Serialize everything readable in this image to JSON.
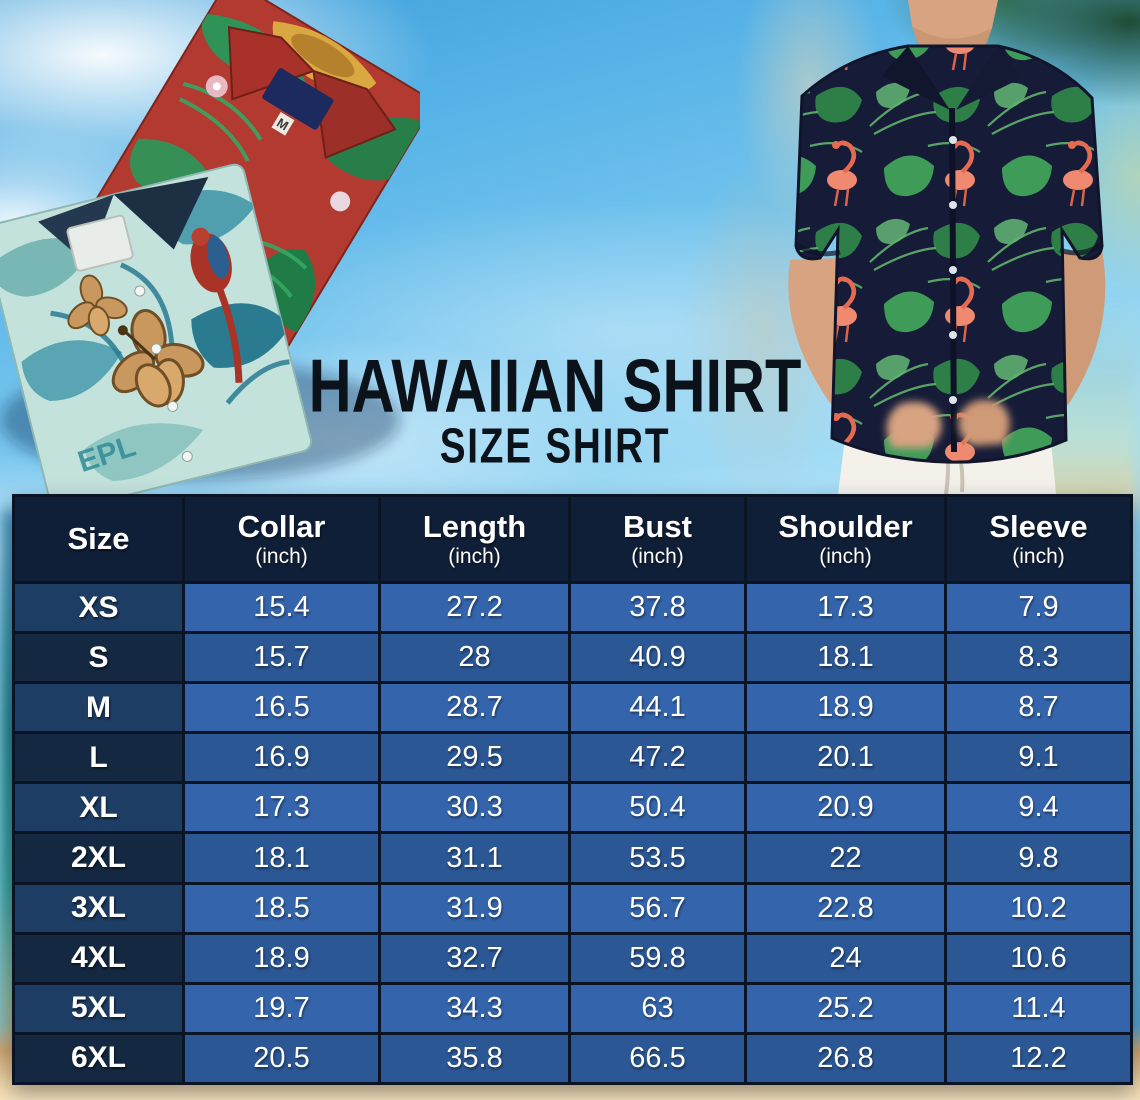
{
  "poster": {
    "title": "HAWAIIAN SHIRT",
    "subtitle": "SIZE SHIRT"
  },
  "photos": {
    "folded_shirts_alt": "Two folded Hawaiian shirts: red with green tropical leaves and a teal shirt with hibiscus flowers and parrots",
    "model_alt": "Man wearing a navy Hawaiian shirt with flamingos and monstera leaves, hands in white pants pockets",
    "red_shirt_size_tag": "M",
    "teal_shirt_print_text": "EPL"
  },
  "size_table": {
    "columns": [
      {
        "label": "Size",
        "unit": ""
      },
      {
        "label": "Collar",
        "unit": "(inch)"
      },
      {
        "label": "Length",
        "unit": "(inch)"
      },
      {
        "label": "Bust",
        "unit": "(inch)"
      },
      {
        "label": "Shoulder",
        "unit": "(inch)"
      },
      {
        "label": "Sleeve",
        "unit": "(inch)"
      }
    ],
    "rows": [
      {
        "size": "XS",
        "values": [
          "15.4",
          "27.2",
          "37.8",
          "17.3",
          "7.9"
        ]
      },
      {
        "size": "S",
        "values": [
          "15.7",
          "28",
          "40.9",
          "18.1",
          "8.3"
        ]
      },
      {
        "size": "M",
        "values": [
          "16.5",
          "28.7",
          "44.1",
          "18.9",
          "8.7"
        ]
      },
      {
        "size": "L",
        "values": [
          "16.9",
          "29.5",
          "47.2",
          "20.1",
          "9.1"
        ]
      },
      {
        "size": "XL",
        "values": [
          "17.3",
          "30.3",
          "50.4",
          "20.9",
          "9.4"
        ]
      },
      {
        "size": "2XL",
        "values": [
          "18.1",
          "31.1",
          "53.5",
          "22",
          "9.8"
        ]
      },
      {
        "size": "3XL",
        "values": [
          "18.5",
          "31.9",
          "56.7",
          "22.8",
          "10.2"
        ]
      },
      {
        "size": "4XL",
        "values": [
          "18.9",
          "32.7",
          "59.8",
          "24",
          "10.6"
        ]
      },
      {
        "size": "5XL",
        "values": [
          "19.7",
          "34.3",
          "63",
          "25.2",
          "11.4"
        ]
      },
      {
        "size": "6XL",
        "values": [
          "20.5",
          "35.8",
          "66.5",
          "26.8",
          "12.2"
        ]
      }
    ]
  },
  "colors": {
    "title_text": "#0c1219",
    "header_bg": "#101f38",
    "size_cell_odd": "#1e3d64",
    "size_cell_even": "#142941",
    "data_cell_odd": "#3465ac",
    "data_cell_even": "#2b5795",
    "table_border": "#0a1424",
    "cell_text": "#ffffff",
    "sky": "#7ac8ef",
    "sand": "#ecd3a4",
    "red_shirt": "#b23a30",
    "teal_shirt": "#c3e2dc",
    "model_shirt_navy": "#161c38"
  }
}
